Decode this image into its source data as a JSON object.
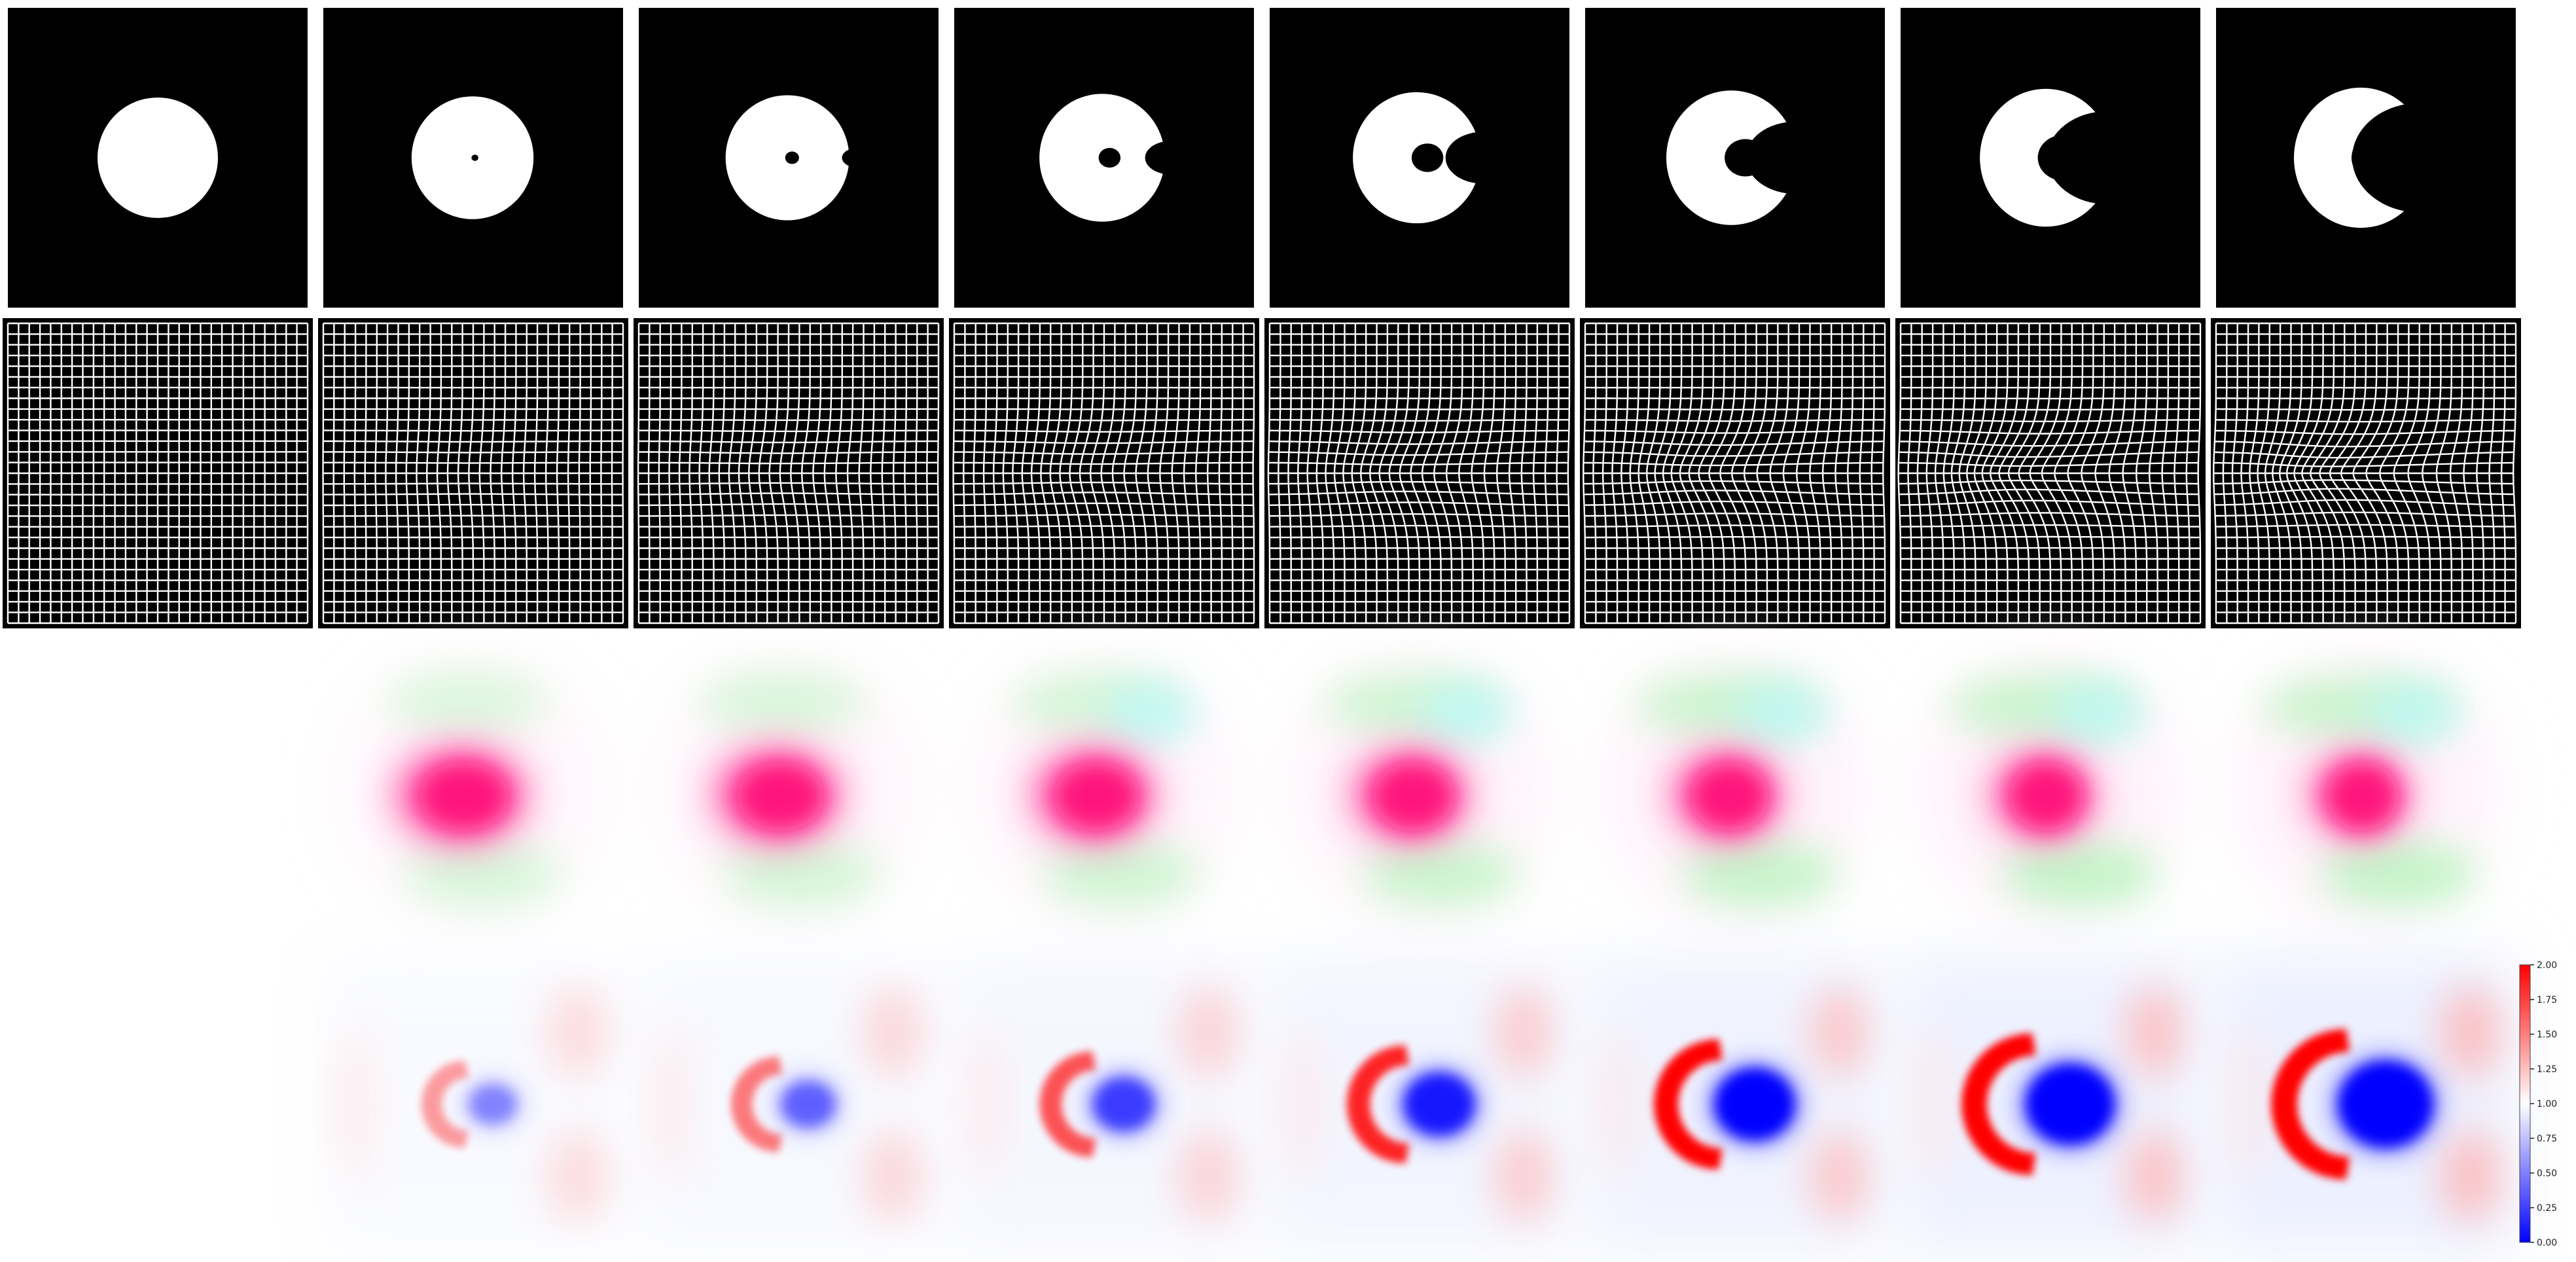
{
  "figure": {
    "rows": [
      "shape",
      "deformation-grid",
      "vector-field",
      "jacobian"
    ],
    "panels_per_row": 8,
    "deformation_progress": [
      0.0,
      0.12,
      0.24,
      0.38,
      0.55,
      0.72,
      0.88,
      1.0
    ],
    "colors": {
      "shape_background": "#000000",
      "shape_foreground": "#ffffff",
      "grid_line": "#ffffff",
      "grid_background": "#000000",
      "field_magenta": "#ff0a78",
      "field_green": "#9cf5a4",
      "field_cyan": "#bdf8f6",
      "jac_high": "#ff0000",
      "jac_mid": "#ffffff",
      "jac_low": "#0000ff"
    }
  },
  "colorbar": {
    "min": 0.0,
    "max": 2.0,
    "ticks": [
      "0.00",
      "0.25",
      "0.50",
      "0.75",
      "1.00",
      "1.25",
      "1.50",
      "1.75",
      "2.00"
    ]
  }
}
